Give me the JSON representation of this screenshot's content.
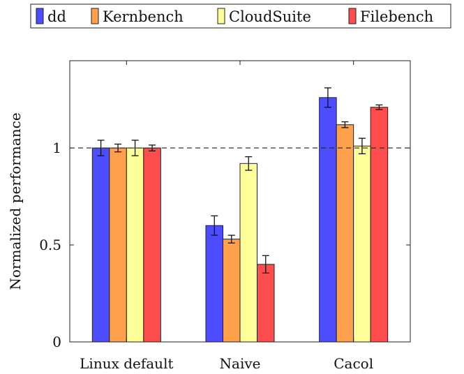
{
  "chart_data": {
    "type": "bar",
    "categories": [
      "Linux default",
      "Naive",
      "Cacol"
    ],
    "series": [
      {
        "name": "dd",
        "values": [
          1.0,
          0.6,
          1.26
        ],
        "errors": [
          0.04,
          0.05,
          0.05
        ],
        "color": "#4d4dff"
      },
      {
        "name": "Kernbench",
        "values": [
          1.0,
          0.53,
          1.12
        ],
        "errors": [
          0.02,
          0.02,
          0.015
        ],
        "color": "#ffa04d"
      },
      {
        "name": "CloudSuite",
        "values": [
          1.0,
          0.92,
          1.01
        ],
        "errors": [
          0.04,
          0.035,
          0.04
        ],
        "color": "#ffff99"
      },
      {
        "name": "Filebench",
        "values": [
          1.0,
          0.4,
          1.21
        ],
        "errors": [
          0.015,
          0.045,
          0.012
        ],
        "color": "#ff4d4d"
      }
    ],
    "ylabel": "Normalized performance",
    "xlabel": "",
    "title": "",
    "ylim": [
      0,
      1.45
    ],
    "yticks": [
      0,
      0.5,
      1
    ],
    "ytick_labels": [
      "0",
      "0.5",
      "1"
    ],
    "reference_line": 1,
    "grid": false,
    "legend_position": "top-center"
  }
}
